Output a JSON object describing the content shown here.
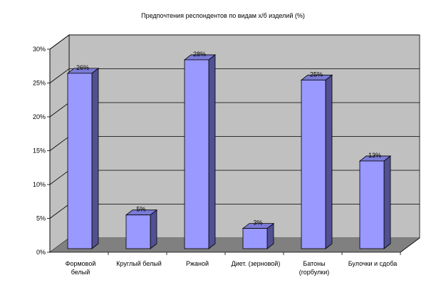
{
  "chart_data": {
    "type": "bar",
    "title": "Предпочтения респондентов по видам х/б изделий (%)",
    "categories": [
      [
        "Формовой",
        "белый"
      ],
      [
        "Круглый белый"
      ],
      [
        "Ржаной"
      ],
      [
        "Диет. (зерновой)"
      ],
      [
        "Батоны",
        "(горбулки)"
      ],
      [
        "Булочки и сдоба"
      ]
    ],
    "values": [
      26,
      5,
      28,
      3,
      25,
      13
    ],
    "data_labels": [
      "26%",
      "5%",
      "28%",
      "3%",
      "25%",
      "13%"
    ],
    "y_ticks": [
      "0%",
      "5%",
      "10%",
      "15%",
      "20%",
      "25%",
      "30%"
    ],
    "ylim": [
      0,
      30
    ],
    "grid": true,
    "legend": "none",
    "colors": {
      "bar_front": "#9999ff",
      "bar_side": "#505092",
      "bar_top": "#7a7ad6",
      "wall": "#c0c0c0",
      "floor": "#808080"
    }
  }
}
